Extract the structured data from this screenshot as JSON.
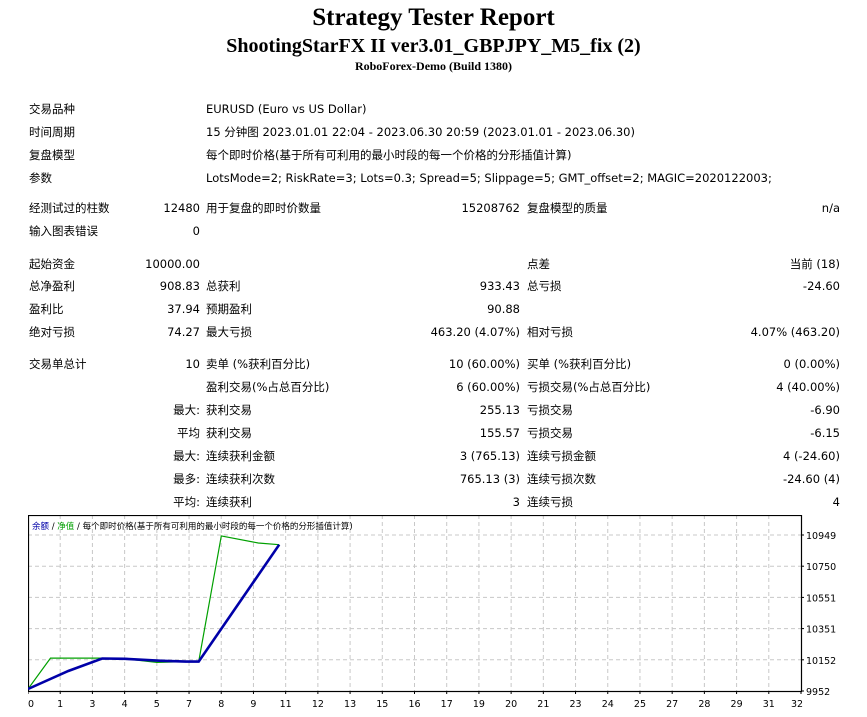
{
  "header": {
    "title": "Strategy Tester Report",
    "expert": "ShootingStarFX II ver3.01_GBPJPY_M5_fix (2)",
    "server": "RoboForex-Demo (Build 1380)"
  },
  "info": {
    "symbol_label": "交易品种",
    "symbol_value": "EURUSD (Euro vs US Dollar)",
    "period_label": "时间周期",
    "period_value": "15 分钟图 2023.01.01 22:04 - 2023.06.30 20:59 (2023.01.01 - 2023.06.30)",
    "model_label": "复盘模型",
    "model_value": "每个即时价格(基于所有可利用的最小时段的每一个价格的分形插值计算)",
    "params_label": "参数",
    "params_value": "LotsMode=2; RiskRate=3; Lots=0.3; Spread=5; Slippage=5; GMT_offset=2; MAGIC=2020122003;"
  },
  "bars": {
    "bars_label": "经测试过的柱数",
    "bars_value": "12480",
    "ticks_label": "用于复盘的即时价数量",
    "ticks_value": "15208762",
    "quality_label": "复盘模型的质量",
    "quality_value": "n/a",
    "errors_label": "输入图表错误",
    "errors_value": "0"
  },
  "stats": {
    "deposit_label": "起始资金",
    "deposit_value": "10000.00",
    "spread_label": "点差",
    "spread_value": "当前 (18)",
    "net_label": "总净盈利",
    "net_value": "908.83",
    "gross_profit_label": "总获利",
    "gross_profit_value": "933.43",
    "gross_loss_label": "总亏损",
    "gross_loss_value": "-24.60",
    "pf_label": "盈利比",
    "pf_value": "37.94",
    "payoff_label": "预期盈利",
    "payoff_value": "90.88",
    "abs_dd_label": "绝对亏损",
    "abs_dd_value": "74.27",
    "max_dd_label": "最大亏损",
    "max_dd_value": "463.20 (4.07%)",
    "rel_dd_label": "相对亏损",
    "rel_dd_value": "4.07% (463.20)"
  },
  "trades": {
    "total_label": "交易单总计",
    "total_value": "10",
    "short_label": "卖单 (%获利百分比)",
    "short_value": "10 (60.00%)",
    "long_label": "买单 (%获利百分比)",
    "long_value": "0 (0.00%)",
    "profit_trades_label": "盈利交易(%占总百分比)",
    "profit_trades_value": "6 (60.00%)",
    "loss_trades_label": "亏损交易(%占总百分比)",
    "loss_trades_value": "4 (40.00%)",
    "rows": [
      {
        "prefix": "最大:",
        "l1": "获利交易",
        "v1": "255.13",
        "l2": "亏损交易",
        "v2": "-6.90"
      },
      {
        "prefix": "平均",
        "l1": "获利交易",
        "v1": "155.57",
        "l2": "亏损交易",
        "v2": "-6.15"
      },
      {
        "prefix": "最大:",
        "l1": "连续获利金额",
        "v1": "3 (765.13)",
        "l2": "连续亏损金额",
        "v2": "4 (-24.60)"
      },
      {
        "prefix": "最多:",
        "l1": "连续获利次数",
        "v1": "765.13 (3)",
        "l2": "连续亏损次数",
        "v2": "-24.60 (4)"
      },
      {
        "prefix": "平均:",
        "l1": "连续获利",
        "v1": "3",
        "l2": "连续亏损",
        "v2": "4"
      }
    ]
  },
  "chart_legend": {
    "balance": "余额",
    "sep1": " / ",
    "equity": "净值",
    "sep2": " / ",
    "model": "每个即时价格(基于所有可利用的最小时段的每一个价格的分形插值计算)"
  },
  "chart_data": {
    "type": "line",
    "title": "余额 / 净值 / 每个即时价格(基于所有可利用的最小时段的每一个价格的分形插值计算)",
    "xlabel": "",
    "ylabel": "",
    "x_tick_labels": [
      "0",
      "1",
      "3",
      "4",
      "5",
      "7",
      "8",
      "9",
      "11",
      "12",
      "13",
      "15",
      "16",
      "17",
      "19",
      "20",
      "21",
      "23",
      "24",
      "25",
      "27",
      "28",
      "29",
      "31",
      "32"
    ],
    "y_tick_labels": [
      "10949",
      "10750",
      "10551",
      "10351",
      "10152",
      "9952"
    ],
    "ylim": [
      9952,
      10949
    ],
    "grid": true,
    "colors": {
      "balance": "#0000aa",
      "equity": "#00aa00"
    },
    "series": [
      {
        "name": "余额",
        "x": [
          0,
          1.5,
          3.3,
          4.0,
          5.3,
          6.8,
          7.3,
          10.6
        ],
        "values": [
          9965,
          10080,
          10160,
          10158,
          10145,
          10140,
          10140,
          10887
        ]
      },
      {
        "name": "净值",
        "x": [
          0,
          0.7,
          3.3,
          4.0,
          5.0,
          6.8,
          7.3,
          8.0,
          9.3,
          10.6
        ],
        "values": [
          9965,
          10162,
          10162,
          10158,
          10135,
          10140,
          10140,
          10943,
          10898,
          10887
        ]
      }
    ]
  }
}
